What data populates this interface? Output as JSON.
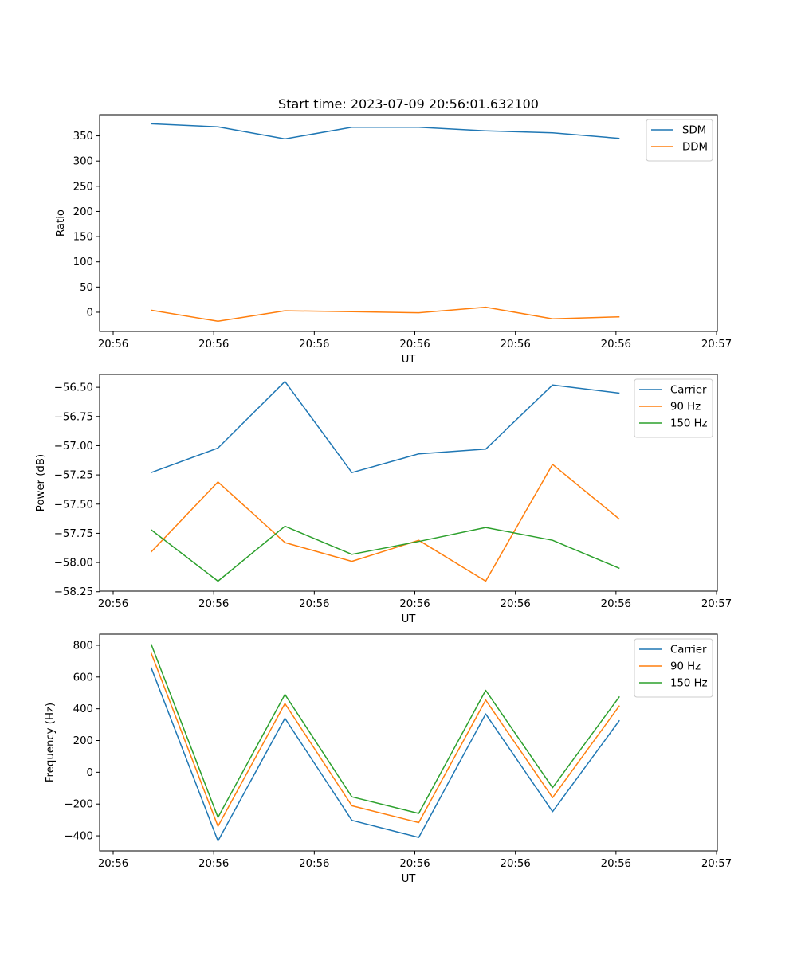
{
  "title": "Start time: 2023-07-09 20:56:01.632100",
  "chart_data": [
    {
      "type": "line",
      "xlabel": "UT",
      "ylabel": "Ratio",
      "x_tick_labels": [
        "20:56",
        "20:56",
        "20:56",
        "20:56",
        "20:56",
        "20:56",
        "20:56"
      ],
      "x_tick_last": "20:57",
      "xlim": [
        0,
        12
      ],
      "x": [
        1,
        2.3,
        3.6,
        4.9,
        6.2,
        7.5,
        8.8,
        10.1
      ],
      "ylim": [
        -38,
        392
      ],
      "y_ticks": [
        0,
        50,
        100,
        150,
        200,
        250,
        300,
        350
      ],
      "y_tick_labels": [
        "0",
        "50",
        "100",
        "150",
        "200",
        "250",
        "300",
        "350"
      ],
      "legend_position": "upper-right",
      "series": [
        {
          "name": "SDM",
          "color": "#1f77b4",
          "values": [
            374,
            368,
            344,
            367,
            367,
            360,
            356,
            345
          ]
        },
        {
          "name": "DDM",
          "color": "#ff7f0e",
          "values": [
            4,
            -18,
            3,
            1,
            -1,
            10,
            -13,
            -9
          ]
        }
      ]
    },
    {
      "type": "line",
      "xlabel": "UT",
      "ylabel": "Power (dB)",
      "x_tick_labels": [
        "20:56",
        "20:56",
        "20:56",
        "20:56",
        "20:56",
        "20:56",
        "20:56"
      ],
      "x_tick_last": "20:57",
      "xlim": [
        0,
        12
      ],
      "x": [
        1,
        2.3,
        3.6,
        4.9,
        6.2,
        7.5,
        8.8,
        10.1
      ],
      "ylim": [
        -58.245,
        -56.39
      ],
      "y_ticks": [
        -58.25,
        -58.0,
        -57.75,
        -57.5,
        -57.25,
        -57.0,
        -56.75,
        -56.5
      ],
      "y_tick_labels": [
        "−58.25",
        "−58.00",
        "−57.75",
        "−57.50",
        "−57.25",
        "−57.00",
        "−56.75",
        "−56.50"
      ],
      "legend_position": "upper-right",
      "series": [
        {
          "name": "Carrier",
          "color": "#1f77b4",
          "values": [
            -57.23,
            -57.02,
            -56.45,
            -57.23,
            -57.07,
            -57.03,
            -56.48,
            -56.55
          ]
        },
        {
          "name": "90 Hz",
          "color": "#ff7f0e",
          "values": [
            -57.91,
            -57.31,
            -57.83,
            -57.99,
            -57.81,
            -58.16,
            -57.16,
            -57.63
          ]
        },
        {
          "name": "150 Hz",
          "color": "#2ca02c",
          "values": [
            -57.72,
            -58.16,
            -57.69,
            -57.93,
            -57.82,
            -57.7,
            -57.81,
            -58.05
          ]
        }
      ]
    },
    {
      "type": "line",
      "xlabel": "UT",
      "ylabel": "Frequency (Hz)",
      "x_tick_labels": [
        "20:56",
        "20:56",
        "20:56",
        "20:56",
        "20:56",
        "20:56",
        "20:56"
      ],
      "x_tick_last": "20:57",
      "xlim": [
        0,
        12
      ],
      "x": [
        1,
        2.3,
        3.6,
        4.9,
        6.2,
        7.5,
        8.8,
        10.1
      ],
      "ylim": [
        -495,
        870
      ],
      "y_ticks": [
        -400,
        -200,
        0,
        200,
        400,
        600,
        800
      ],
      "y_tick_labels": [
        "−400",
        "−200",
        "0",
        "200",
        "400",
        "600",
        "800"
      ],
      "legend_position": "upper-right",
      "series": [
        {
          "name": "Carrier",
          "color": "#1f77b4",
          "values": [
            660,
            -433,
            340,
            -303,
            -410,
            367,
            -248,
            327
          ]
        },
        {
          "name": "90 Hz",
          "color": "#ff7f0e",
          "values": [
            752,
            -340,
            433,
            -211,
            -317,
            455,
            -160,
            420
          ]
        },
        {
          "name": "150 Hz",
          "color": "#2ca02c",
          "values": [
            808,
            -284,
            490,
            -155,
            -259,
            516,
            -97,
            477
          ]
        }
      ]
    }
  ]
}
